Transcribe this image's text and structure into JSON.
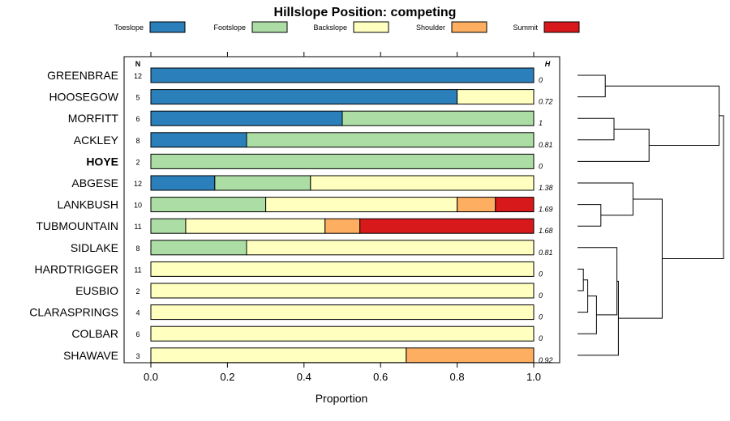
{
  "chart_data": {
    "type": "bar",
    "stacked": true,
    "orientation": "horizontal",
    "title": "Hillslope Position: competing",
    "xlabel": "Proportion",
    "xlim": [
      0,
      1
    ],
    "xticks": [
      "0.0",
      "0.2",
      "0.4",
      "0.6",
      "0.8",
      "1.0"
    ],
    "xtick_values": [
      0,
      0.2,
      0.4,
      0.6,
      0.8,
      1.0
    ],
    "n_header": "N",
    "h_header": "H",
    "legend": [
      {
        "name": "Toeslope",
        "color": "#2b7fba"
      },
      {
        "name": "Footslope",
        "color": "#abdda4"
      },
      {
        "name": "Backslope",
        "color": "#ffffbf"
      },
      {
        "name": "Shoulder",
        "color": "#fdae61"
      },
      {
        "name": "Summit",
        "color": "#d7191c"
      }
    ],
    "rows": [
      {
        "name": "GREENBRAE",
        "n": "12",
        "h": "0",
        "bold": false,
        "values": [
          1,
          0,
          0,
          0,
          0
        ]
      },
      {
        "name": "HOOSEGOW",
        "n": "5",
        "h": "0.72",
        "bold": false,
        "values": [
          0.8,
          0,
          0.2,
          0,
          0
        ]
      },
      {
        "name": "MORFITT",
        "n": "6",
        "h": "1",
        "bold": false,
        "values": [
          0.5,
          0.5,
          0,
          0,
          0
        ]
      },
      {
        "name": "ACKLEY",
        "n": "8",
        "h": "0.81",
        "bold": false,
        "values": [
          0.25,
          0.75,
          0,
          0,
          0
        ]
      },
      {
        "name": "HOYE",
        "n": "2",
        "h": "0",
        "bold": true,
        "values": [
          0,
          1,
          0,
          0,
          0
        ]
      },
      {
        "name": "ABGESE",
        "n": "12",
        "h": "1.38",
        "bold": false,
        "values": [
          0.167,
          0.25,
          0.583,
          0,
          0
        ]
      },
      {
        "name": "LANKBUSH",
        "n": "10",
        "h": "1.69",
        "bold": false,
        "values": [
          0,
          0.3,
          0.5,
          0.1,
          0.1
        ]
      },
      {
        "name": "TUBMOUNTAIN",
        "n": "11",
        "h": "1.68",
        "bold": false,
        "values": [
          0,
          0.091,
          0.364,
          0.091,
          0.454
        ]
      },
      {
        "name": "SIDLAKE",
        "n": "8",
        "h": "0.81",
        "bold": false,
        "values": [
          0,
          0.25,
          0.75,
          0,
          0
        ]
      },
      {
        "name": "HARDTRIGGER",
        "n": "11",
        "h": "0",
        "bold": false,
        "values": [
          0,
          0,
          1,
          0,
          0
        ]
      },
      {
        "name": "EUSBIO",
        "n": "2",
        "h": "0",
        "bold": false,
        "values": [
          0,
          0,
          1,
          0,
          0
        ]
      },
      {
        "name": "CLARASPRINGS",
        "n": "4",
        "h": "0",
        "bold": false,
        "values": [
          0,
          0,
          1,
          0,
          0
        ]
      },
      {
        "name": "COLBAR",
        "n": "6",
        "h": "0",
        "bold": false,
        "values": [
          0,
          0,
          1,
          0,
          0
        ]
      },
      {
        "name": "SHAWAVE",
        "n": "3",
        "h": "0.92",
        "bold": false,
        "values": [
          0,
          0,
          0.667,
          0.333,
          0
        ]
      }
    ],
    "dendrogram": {
      "leaves": [
        "GREENBRAE",
        "HOOSEGOW",
        "MORFITT",
        "ACKLEY",
        "HOYE",
        "ABGESE",
        "LANKBUSH",
        "TUBMOUNTAIN",
        "SIDLAKE",
        "HARDTRIGGER",
        "EUSBIO",
        "CLARASPRINGS",
        "COLBAR",
        "SHAWAVE"
      ],
      "merges": [
        {
          "a": 9,
          "b": 10,
          "height": 0.04
        },
        {
          "a": -1,
          "b": 11,
          "height": 0.07
        },
        {
          "a": -2,
          "b": 12,
          "height": 0.13
        },
        {
          "a": -3,
          "b": 8,
          "height": 0.27
        },
        {
          "a": -4,
          "b": 13,
          "height": 0.28
        },
        {
          "a": 6,
          "b": 7,
          "height": 0.16
        },
        {
          "a": -6,
          "b": 5,
          "height": 0.38
        },
        {
          "a": -7,
          "b": -5,
          "height": 0.58
        },
        {
          "a": 0,
          "b": 1,
          "height": 0.19
        },
        {
          "a": 2,
          "b": 3,
          "height": 0.25
        },
        {
          "a": -10,
          "b": 4,
          "height": 0.49
        },
        {
          "a": -9,
          "b": -11,
          "height": 0.97
        },
        {
          "a": -12,
          "b": -8,
          "height": 1.0
        }
      ]
    }
  }
}
